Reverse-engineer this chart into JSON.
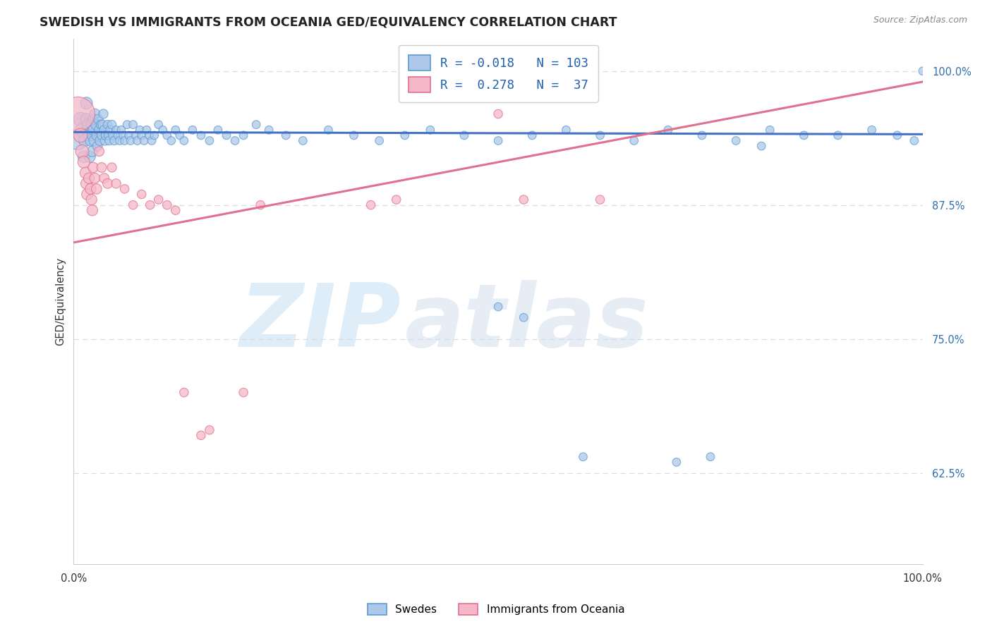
{
  "title": "SWEDISH VS IMMIGRANTS FROM OCEANIA GED/EQUIVALENCY CORRELATION CHART",
  "source": "Source: ZipAtlas.com",
  "ylabel": "GED/Equivalency",
  "ytick_labels": [
    "100.0%",
    "87.5%",
    "75.0%",
    "62.5%"
  ],
  "ytick_values": [
    1.0,
    0.875,
    0.75,
    0.625
  ],
  "watermark": "ZIPatlas",
  "legend_blue_R": "-0.018",
  "legend_blue_N": "103",
  "legend_pink_R": "0.278",
  "legend_pink_N": "37",
  "blue_fill": "#adc8e8",
  "blue_edge": "#5b9bd5",
  "pink_fill": "#f5b8c8",
  "pink_edge": "#e07090",
  "blue_line": "#4472c4",
  "pink_line": "#e07090",
  "blue_scatter_x": [
    0.005,
    0.008,
    0.01,
    0.012,
    0.013,
    0.015,
    0.015,
    0.016,
    0.017,
    0.018,
    0.019,
    0.02,
    0.021,
    0.022,
    0.022,
    0.023,
    0.023,
    0.024,
    0.025,
    0.026,
    0.027,
    0.028,
    0.029,
    0.03,
    0.031,
    0.032,
    0.033,
    0.034,
    0.035,
    0.036,
    0.037,
    0.038,
    0.04,
    0.041,
    0.042,
    0.043,
    0.045,
    0.046,
    0.048,
    0.05,
    0.052,
    0.054,
    0.056,
    0.058,
    0.06,
    0.063,
    0.065,
    0.067,
    0.07,
    0.073,
    0.075,
    0.078,
    0.08,
    0.083,
    0.086,
    0.089,
    0.092,
    0.095,
    0.1,
    0.105,
    0.11,
    0.115,
    0.12,
    0.125,
    0.13,
    0.14,
    0.15,
    0.16,
    0.17,
    0.18,
    0.19,
    0.2,
    0.215,
    0.23,
    0.25,
    0.27,
    0.3,
    0.33,
    0.36,
    0.39,
    0.42,
    0.46,
    0.5,
    0.54,
    0.58,
    0.62,
    0.66,
    0.7,
    0.74,
    0.78,
    0.82,
    0.86,
    0.9,
    0.94,
    0.97,
    0.99,
    0.5,
    0.53,
    0.6,
    0.71,
    0.75,
    1.0,
    0.81
  ],
  "blue_scatter_y": [
    0.935,
    0.955,
    0.945,
    0.92,
    0.935,
    0.97,
    0.955,
    0.945,
    0.95,
    0.94,
    0.92,
    0.935,
    0.95,
    0.94,
    0.925,
    0.955,
    0.945,
    0.935,
    0.96,
    0.95,
    0.94,
    0.93,
    0.955,
    0.945,
    0.935,
    0.95,
    0.94,
    0.95,
    0.96,
    0.945,
    0.935,
    0.94,
    0.95,
    0.94,
    0.935,
    0.945,
    0.95,
    0.94,
    0.935,
    0.945,
    0.94,
    0.935,
    0.945,
    0.94,
    0.935,
    0.95,
    0.94,
    0.935,
    0.95,
    0.94,
    0.935,
    0.945,
    0.94,
    0.935,
    0.945,
    0.94,
    0.935,
    0.94,
    0.95,
    0.945,
    0.94,
    0.935,
    0.945,
    0.94,
    0.935,
    0.945,
    0.94,
    0.935,
    0.945,
    0.94,
    0.935,
    0.94,
    0.95,
    0.945,
    0.94,
    0.935,
    0.945,
    0.94,
    0.935,
    0.94,
    0.945,
    0.94,
    0.935,
    0.94,
    0.945,
    0.94,
    0.935,
    0.945,
    0.94,
    0.935,
    0.945,
    0.94,
    0.94,
    0.945,
    0.94,
    0.935,
    0.78,
    0.77,
    0.64,
    0.635,
    0.64,
    1.0,
    0.93
  ],
  "blue_scatter_s": [
    350,
    200,
    200,
    150,
    150,
    150,
    150,
    130,
    130,
    130,
    130,
    120,
    120,
    120,
    120,
    110,
    110,
    110,
    110,
    100,
    100,
    100,
    100,
    100,
    100,
    90,
    90,
    90,
    90,
    90,
    90,
    90,
    80,
    80,
    80,
    80,
    80,
    80,
    80,
    70,
    70,
    70,
    70,
    70,
    70,
    70,
    70,
    70,
    70,
    70,
    70,
    70,
    70,
    70,
    70,
    70,
    70,
    70,
    70,
    70,
    70,
    70,
    70,
    70,
    70,
    70,
    70,
    70,
    70,
    70,
    70,
    70,
    70,
    70,
    70,
    70,
    70,
    70,
    70,
    70,
    70,
    70,
    70,
    70,
    70,
    70,
    70,
    70,
    70,
    70,
    70,
    70,
    70,
    70,
    70,
    70,
    70,
    70,
    70,
    70,
    70,
    70,
    70
  ],
  "pink_scatter_x": [
    0.005,
    0.008,
    0.01,
    0.012,
    0.014,
    0.015,
    0.016,
    0.018,
    0.02,
    0.021,
    0.022,
    0.023,
    0.025,
    0.027,
    0.03,
    0.033,
    0.036,
    0.04,
    0.045,
    0.05,
    0.06,
    0.07,
    0.08,
    0.09,
    0.1,
    0.11,
    0.12,
    0.13,
    0.15,
    0.16,
    0.2,
    0.22,
    0.35,
    0.38,
    0.5,
    0.53,
    0.62
  ],
  "pink_scatter_y": [
    0.96,
    0.94,
    0.925,
    0.915,
    0.905,
    0.895,
    0.885,
    0.9,
    0.89,
    0.88,
    0.87,
    0.91,
    0.9,
    0.89,
    0.925,
    0.91,
    0.9,
    0.895,
    0.91,
    0.895,
    0.89,
    0.875,
    0.885,
    0.875,
    0.88,
    0.875,
    0.87,
    0.7,
    0.66,
    0.665,
    0.7,
    0.875,
    0.875,
    0.88,
    0.96,
    0.88,
    0.88
  ],
  "pink_scatter_s": [
    1200,
    200,
    180,
    150,
    130,
    130,
    130,
    120,
    120,
    120,
    120,
    110,
    110,
    110,
    100,
    100,
    100,
    100,
    90,
    90,
    80,
    80,
    80,
    80,
    80,
    80,
    80,
    80,
    80,
    80,
    80,
    80,
    80,
    80,
    80,
    80,
    80
  ],
  "blue_trend_x": [
    0.0,
    1.0
  ],
  "blue_trend_y": [
    0.943,
    0.941
  ],
  "pink_trend_x": [
    0.0,
    1.0
  ],
  "pink_trend_y": [
    0.84,
    0.99
  ],
  "xlim": [
    0.0,
    1.0
  ],
  "ylim": [
    0.54,
    1.03
  ],
  "grid_yticks": [
    1.0,
    0.875,
    0.75,
    0.625
  ],
  "bg_color": "#ffffff",
  "grid_color": "#dddddd"
}
